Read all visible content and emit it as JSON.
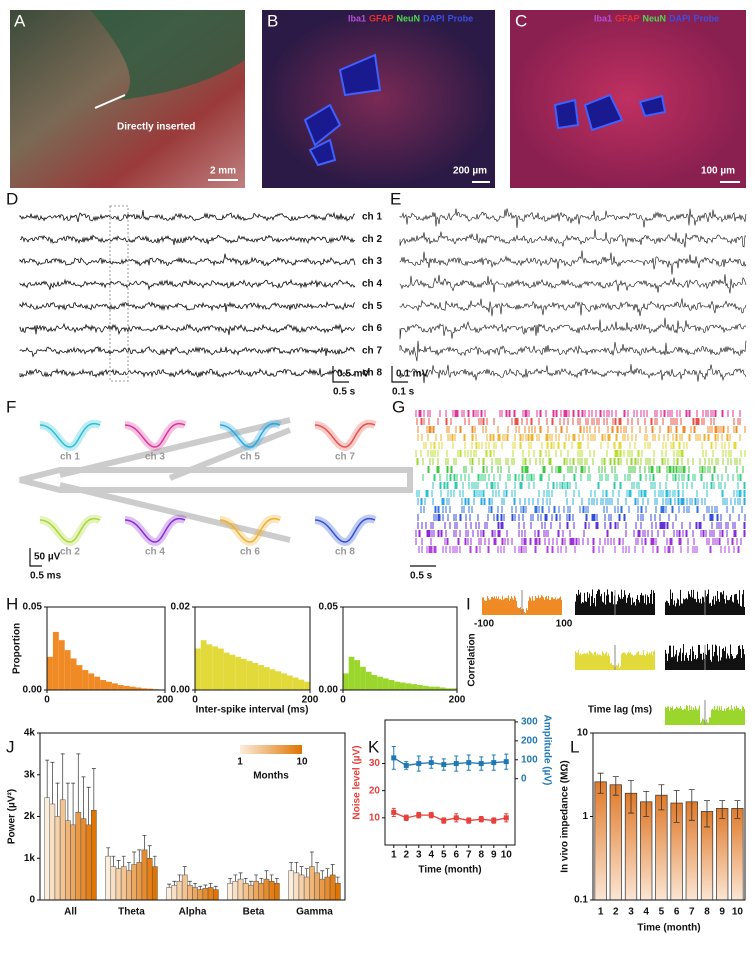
{
  "panel_labels": [
    "A",
    "B",
    "C",
    "D",
    "E",
    "F",
    "G",
    "H",
    "I",
    "J",
    "K",
    "L"
  ],
  "image_A": {
    "annotation": "Directly inserted",
    "scale_bar": "2 mm"
  },
  "image_B": {
    "stains": [
      "Iba1",
      "GFAP",
      "NeuN",
      "DAPI",
      "Probe"
    ],
    "scale_bar": "200 µm"
  },
  "image_C": {
    "stains": [
      "Iba1",
      "GFAP",
      "NeuN",
      "DAPI",
      "Probe"
    ],
    "scale_bar": "100 µm"
  },
  "stain_colors": [
    "#b44fd8",
    "#e83030",
    "#4fd84f",
    "#3a4fe8",
    "#3a4fe8"
  ],
  "channels": [
    "ch 1",
    "ch 2",
    "ch 3",
    "ch 4",
    "ch 5",
    "ch 6",
    "ch 7",
    "ch 8"
  ],
  "traces_D": {
    "scale_y": "0.5 mV",
    "scale_x": "0.5 s"
  },
  "traces_E": {
    "scale_y": "0.1 mV",
    "scale_x": "0.1 s"
  },
  "waveforms_F": {
    "scale_y": "50 µV",
    "scale_x": "0.5 ms"
  },
  "raster_G": {
    "scale_x": "0.5 s"
  },
  "correlogram_I": {
    "xticks": [
      -100,
      100
    ],
    "y_label": "Correlation",
    "x_label": "Time lag (ms)"
  },
  "chart_data": [
    {
      "type": "histogram",
      "color": "#f08a24",
      "bins": [
        0,
        10,
        20,
        30,
        40,
        50,
        60,
        70,
        80,
        90,
        100,
        110,
        120,
        130,
        140,
        150,
        160,
        170,
        180,
        190,
        200
      ],
      "counts": [
        0.02,
        0.035,
        0.03,
        0.024,
        0.019,
        0.015,
        0.012,
        0.01,
        0.008,
        0.006,
        0.005,
        0.004,
        0.003,
        0.0025,
        0.002,
        0.0015,
        0.001,
        0.0008,
        0.0005,
        0.0003
      ],
      "xlim": [
        0,
        200
      ],
      "ylim": [
        0,
        0.05
      ],
      "xticks": [
        0,
        200
      ],
      "yticks": [
        {
          "value": 0,
          "label": "0.00"
        },
        {
          "value": 0.05,
          "label": "0.05"
        }
      ],
      "y_label": "Proportion"
    },
    {
      "type": "histogram",
      "color": "#e2d93a",
      "bins": [
        0,
        10,
        20,
        30,
        40,
        50,
        60,
        70,
        80,
        90,
        100,
        110,
        120,
        130,
        140,
        150,
        160,
        170,
        180,
        190,
        200
      ],
      "counts": [
        0.01,
        0.012,
        0.011,
        0.0105,
        0.01,
        0.009,
        0.0085,
        0.008,
        0.0075,
        0.007,
        0.0065,
        0.006,
        0.0055,
        0.005,
        0.0045,
        0.004,
        0.0035,
        0.003,
        0.0025,
        0.002
      ],
      "xlim": [
        0,
        200
      ],
      "ylim": [
        0,
        0.02
      ],
      "xticks": [
        0,
        200
      ],
      "yticks": [
        {
          "value": 0,
          "label": "0.00"
        },
        {
          "value": 0.02,
          "label": "0.02"
        }
      ],
      "x_label": "Inter-spike interval (ms)"
    },
    {
      "type": "histogram",
      "color": "#9bd62c",
      "bins": [
        0,
        10,
        20,
        30,
        40,
        50,
        60,
        70,
        80,
        90,
        100,
        110,
        120,
        130,
        140,
        150,
        160,
        170,
        180,
        190,
        200
      ],
      "counts": [
        0.01,
        0.02,
        0.018,
        0.014,
        0.011,
        0.009,
        0.008,
        0.007,
        0.006,
        0.005,
        0.0045,
        0.004,
        0.0035,
        0.003,
        0.0025,
        0.002,
        0.002,
        0.0015,
        0.001,
        0.001
      ],
      "xlim": [
        0,
        200
      ],
      "ylim": [
        0,
        0.05
      ],
      "xticks": [
        0,
        200
      ],
      "yticks": [
        {
          "value": 0,
          "label": "0.00"
        },
        {
          "value": 0.05,
          "label": "0.05"
        }
      ]
    },
    {
      "type": "grouped_bar",
      "categories": [
        "All",
        "Theta",
        "Alpha",
        "Beta",
        "Gamma"
      ],
      "y_label": "Power (µV²)",
      "ylim": [
        0,
        4000
      ],
      "yticks": [
        0,
        {
          "value": 1000,
          "label": "1k"
        },
        {
          "value": 2000,
          "label": "2k"
        },
        {
          "value": 3000,
          "label": "3k"
        },
        {
          "value": 4000,
          "label": "4k"
        }
      ],
      "colorbar": {
        "title": "Months",
        "labels": [
          "1",
          "10"
        ]
      },
      "series": [
        {
          "color": "#fbeedd",
          "values": [
            2450,
            1050,
            300,
            400,
            700
          ],
          "errors": [
            900,
            200,
            80,
            120,
            200
          ]
        },
        {
          "color": "#f8e0c4",
          "values": [
            2300,
            800,
            350,
            450,
            650
          ],
          "errors": [
            1000,
            250,
            100,
            150,
            250
          ]
        },
        {
          "color": "#f6d2ab",
          "values": [
            2000,
            750,
            450,
            500,
            600
          ],
          "errors": [
            800,
            200,
            150,
            150,
            200
          ]
        },
        {
          "color": "#f3c492",
          "values": [
            2400,
            800,
            600,
            400,
            550
          ],
          "errors": [
            1100,
            250,
            200,
            120,
            200
          ]
        },
        {
          "color": "#f0b679",
          "values": [
            1900,
            700,
            350,
            350,
            800
          ],
          "errors": [
            900,
            200,
            100,
            100,
            350
          ]
        },
        {
          "color": "#eda860",
          "values": [
            1800,
            850,
            300,
            450,
            650
          ],
          "errors": [
            1000,
            300,
            100,
            150,
            250
          ]
        },
        {
          "color": "#ea9a47",
          "values": [
            2100,
            900,
            250,
            400,
            500
          ],
          "errors": [
            1400,
            300,
            80,
            120,
            200
          ]
        },
        {
          "color": "#e78c2e",
          "values": [
            1950,
            1200,
            280,
            500,
            550
          ],
          "errors": [
            1000,
            350,
            80,
            200,
            200
          ]
        },
        {
          "color": "#e47e15",
          "values": [
            1800,
            1000,
            300,
            450,
            600
          ],
          "errors": [
            900,
            300,
            100,
            150,
            250
          ]
        },
        {
          "color": "#e07400",
          "values": [
            2150,
            800,
            250,
            400,
            400
          ],
          "errors": [
            1000,
            250,
            80,
            120,
            150
          ]
        }
      ]
    },
    {
      "type": "line",
      "x": [
        1,
        2,
        3,
        4,
        5,
        6,
        7,
        8,
        9,
        10
      ],
      "xlim": [
        0.3,
        10.7
      ],
      "xticks": [
        1,
        2,
        3,
        4,
        5,
        6,
        7,
        8,
        9,
        10
      ],
      "x_label": "Time (month)",
      "ylim": [
        0,
        46
      ],
      "yticks": [
        10,
        20,
        30
      ],
      "y_label": "Noise level (µV)",
      "y2lim": [
        -350,
        310
      ],
      "y2ticks": [
        0,
        100,
        200,
        300
      ],
      "y2_label": "Amplitude (µV)",
      "series": [
        {
          "color": "#e8413c",
          "values": [
            12,
            10,
            11,
            11,
            9,
            10,
            9,
            9.5,
            9,
            10
          ],
          "errors": [
            1.5,
            1,
            1,
            1,
            1,
            1.5,
            1,
            1,
            1,
            1.5
          ]
        },
        {
          "color": "#1f78b4",
          "axis": "y2",
          "values": [
            110,
            70,
            80,
            85,
            75,
            80,
            85,
            80,
            85,
            90
          ],
          "errors": [
            60,
            20,
            40,
            30,
            30,
            40,
            40,
            35,
            40,
            40
          ]
        }
      ]
    },
    {
      "type": "bar",
      "log_y": true,
      "categories": [
        "1",
        "2",
        "3",
        "4",
        "5",
        "6",
        "7",
        "8",
        "9",
        "10"
      ],
      "x_label": "Time (month)",
      "values": [
        2.6,
        2.4,
        1.9,
        1.5,
        1.8,
        1.45,
        1.5,
        1.15,
        1.25,
        1.25
      ],
      "errors": [
        0.7,
        0.6,
        0.8,
        0.5,
        0.6,
        0.6,
        0.6,
        0.4,
        0.3,
        0.3
      ],
      "color": "#e07a2a",
      "ylim": [
        0.1,
        10
      ],
      "yticks": [
        0.1,
        1,
        10
      ],
      "y_label": "In vivo impedance (MΩ)"
    }
  ]
}
